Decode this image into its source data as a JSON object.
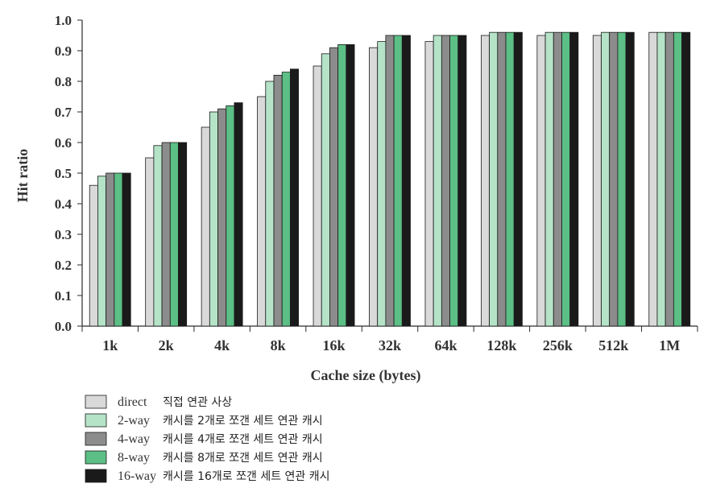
{
  "chart_data": {
    "type": "bar",
    "title": "",
    "xlabel": "Cache size (bytes)",
    "ylabel": "Hit ratio",
    "ylim": [
      0.0,
      1.0
    ],
    "yticks": [
      "0.0",
      "0.1",
      "0.2",
      "0.3",
      "0.4",
      "0.5",
      "0.6",
      "0.7",
      "0.8",
      "0.9",
      "1.0"
    ],
    "grid": false,
    "legend_position": "bottom-left",
    "categories": [
      "1k",
      "2k",
      "4k",
      "8k",
      "16k",
      "32k",
      "64k",
      "128k",
      "256k",
      "512k",
      "1M"
    ],
    "series": [
      {
        "name": "direct",
        "description": "직접 연관 사상",
        "color": "#d9d9d9",
        "values": [
          0.46,
          0.55,
          0.65,
          0.75,
          0.85,
          0.91,
          0.93,
          0.95,
          0.95,
          0.95,
          0.96
        ]
      },
      {
        "name": "2-way",
        "description": "캐시를 2개로 쪼갠 세트 연관 캐시",
        "color": "#b5e3c7",
        "values": [
          0.49,
          0.59,
          0.7,
          0.8,
          0.89,
          0.93,
          0.95,
          0.96,
          0.96,
          0.96,
          0.96
        ]
      },
      {
        "name": "4-way",
        "description": "캐시를 4개로 쪼갠 세트 연관 캐시",
        "color": "#8c8c8c",
        "values": [
          0.5,
          0.6,
          0.71,
          0.82,
          0.91,
          0.95,
          0.95,
          0.96,
          0.96,
          0.96,
          0.96
        ]
      },
      {
        "name": "8-way",
        "description": "캐시를 8개로 쪼갠 세트 연관 캐시",
        "color": "#5cbf85",
        "values": [
          0.5,
          0.6,
          0.72,
          0.83,
          0.92,
          0.95,
          0.95,
          0.96,
          0.96,
          0.96,
          0.96
        ]
      },
      {
        "name": "16-way",
        "description": "캐시를 16개로 쪼갠 세트 연관 캐시",
        "color": "#1a1a1a",
        "values": [
          0.5,
          0.6,
          0.73,
          0.84,
          0.92,
          0.95,
          0.95,
          0.96,
          0.96,
          0.96,
          0.96
        ]
      }
    ]
  }
}
